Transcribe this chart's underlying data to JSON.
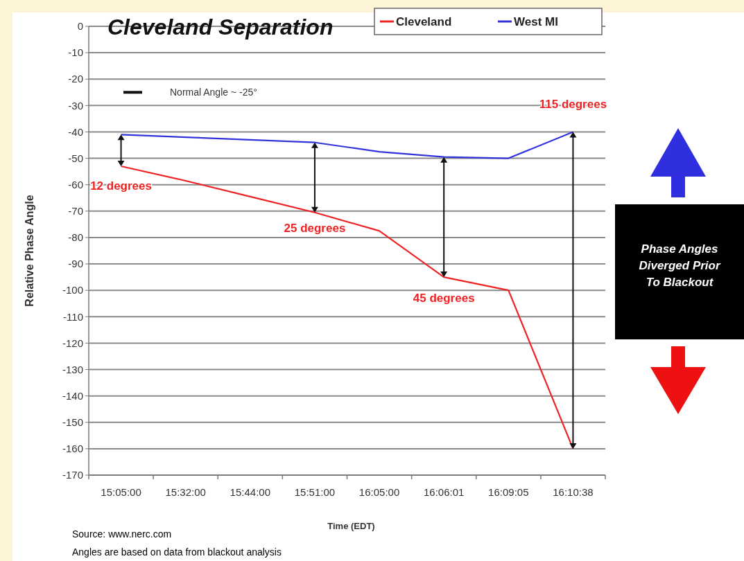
{
  "chart_data": {
    "type": "line",
    "title": "Cleveland Separation",
    "xlabel": "Time (EDT)",
    "ylabel": "Relative Phase Angle",
    "categories": [
      "15:05:00",
      "15:32:00",
      "15:44:00",
      "15:51:00",
      "16:05:00",
      "16:06:01",
      "16:09:05",
      "16:10:38"
    ],
    "series": [
      {
        "name": "Cleveland",
        "color": "#ee2222",
        "values": [
          -53,
          -58.5,
          -64.5,
          -70.5,
          -77.5,
          -95,
          -100,
          -160
        ]
      },
      {
        "name": "West MI",
        "color": "#3333dd",
        "values": [
          -41,
          -42,
          -43,
          -44,
          -47.5,
          -49.5,
          -50,
          -40
        ]
      }
    ],
    "ylim": [
      -170,
      0
    ],
    "yticks": [
      0,
      -10,
      -20,
      -30,
      -40,
      -50,
      -60,
      -70,
      -80,
      -90,
      -100,
      -110,
      -120,
      -130,
      -140,
      -150,
      -160,
      -170
    ],
    "grid": "y",
    "legend": "top right",
    "line_style": "solid",
    "marker": "none",
    "annotations": [
      "12 degrees",
      "25 degrees",
      "45 degrees",
      "115 degrees",
      "Normal Angle ~ -25°",
      "Phase Angles Diverged Prior To Blackout",
      "Source: www.nerc.com",
      "Angles are based on data from blackout analysis"
    ]
  }
}
